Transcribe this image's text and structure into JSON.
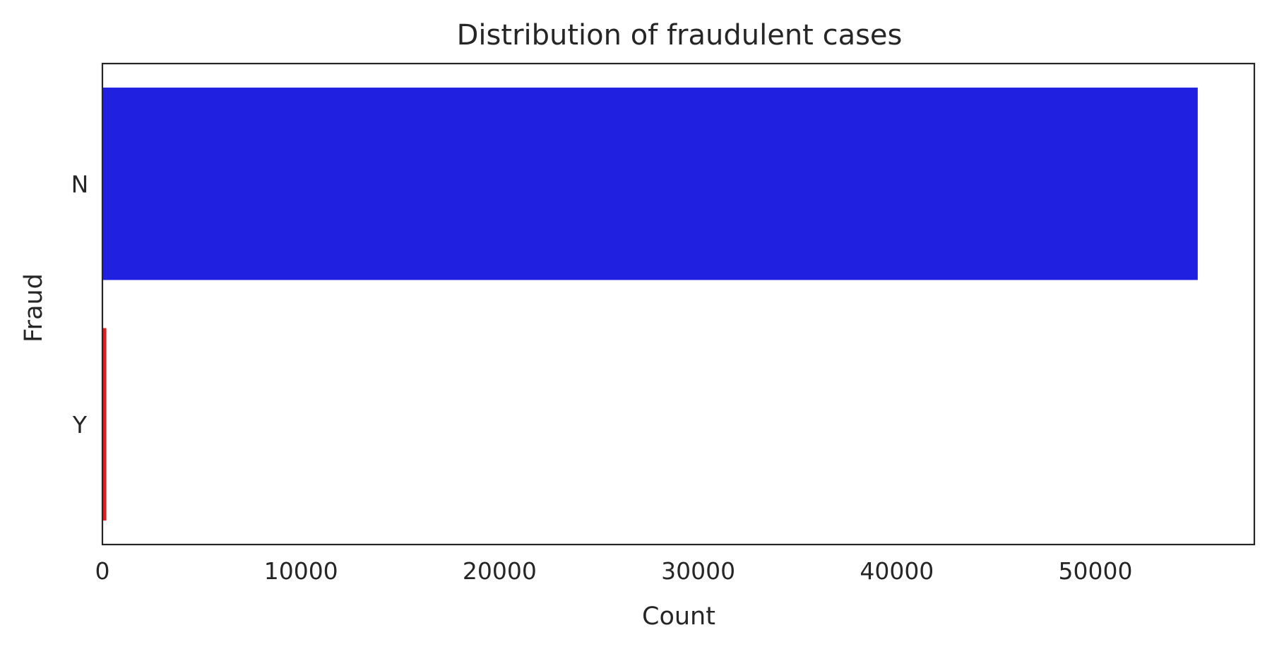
{
  "chart_data": {
    "type": "bar",
    "orientation": "horizontal",
    "title": "Distribution of fraudulent cases",
    "xlabel": "Count",
    "ylabel": "Fraud",
    "categories": [
      "N",
      "Y"
    ],
    "values": [
      55150,
      200
    ],
    "bar_colors": [
      "#2020e0",
      "#e02020"
    ],
    "xlim": [
      0,
      58000
    ],
    "xticks": [
      0,
      10000,
      20000,
      30000,
      40000,
      50000
    ],
    "xtick_labels": [
      "0",
      "10000",
      "20000",
      "30000",
      "40000",
      "50000"
    ],
    "grid": false,
    "legend": "none"
  }
}
